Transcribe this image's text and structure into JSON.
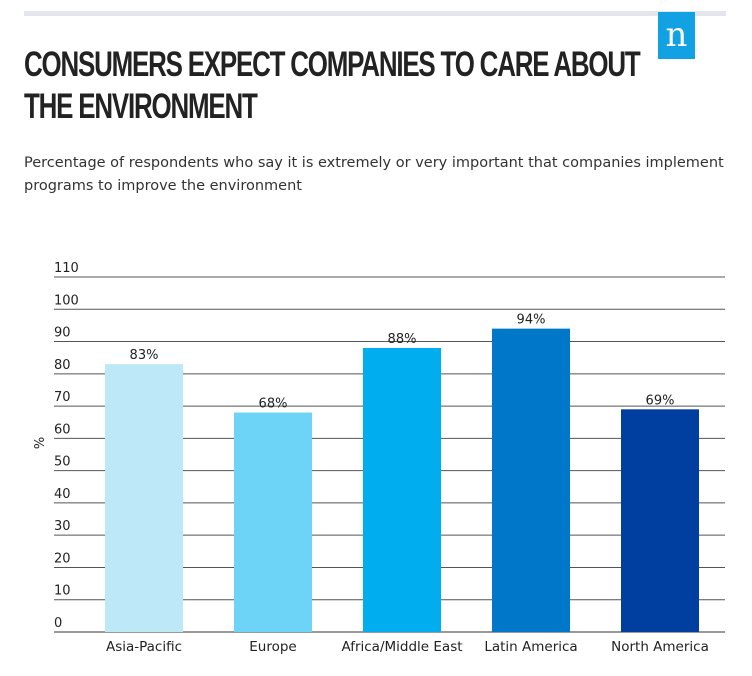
{
  "logo": {
    "letter": "n",
    "color": "#12a1e2"
  },
  "title": "CONSUMERS EXPECT COMPANIES TO CARE ABOUT THE ENVIRONMENT",
  "subtitle": "Percentage of respondents who say it is extremely or very important that companies implement programs to improve the environment",
  "chart_data": {
    "type": "bar",
    "title": "CONSUMERS EXPECT COMPANIES TO CARE ABOUT THE ENVIRONMENT",
    "subtitle": "Percentage of respondents who say it is extremely or very important that companies implement programs to improve the environment",
    "xlabel": "",
    "ylabel": "%",
    "categories": [
      "Asia-Pacific",
      "Europe",
      "Africa/Middle East",
      "Latin America",
      "North America"
    ],
    "values": [
      83,
      68,
      88,
      94,
      69
    ],
    "data_labels": [
      "83%",
      "68%",
      "88%",
      "94%",
      "69%"
    ],
    "colors": [
      "#bde8f7",
      "#6dd4f7",
      "#00aeef",
      "#0077c8",
      "#003ea0"
    ],
    "ylim": [
      0,
      110
    ],
    "yticks": [
      0,
      10,
      20,
      30,
      40,
      50,
      60,
      70,
      80,
      90,
      100,
      110
    ],
    "grid": true,
    "legend": "none"
  }
}
